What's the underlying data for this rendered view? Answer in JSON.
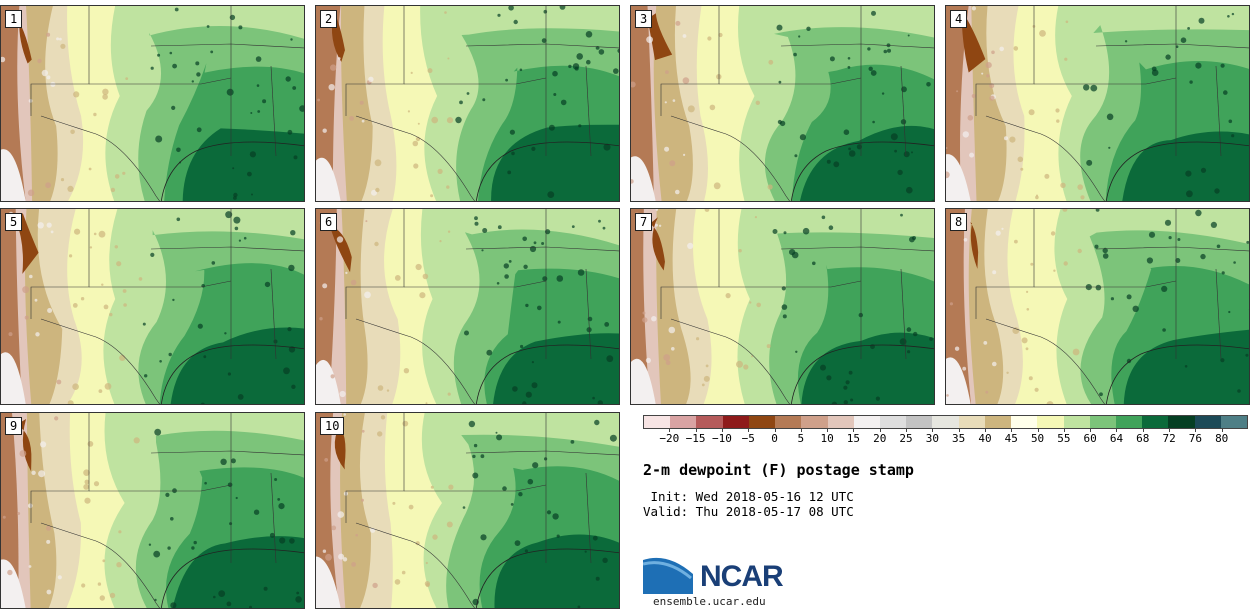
{
  "panels": [
    {
      "label": "1",
      "variant": 1
    },
    {
      "label": "2",
      "variant": 2
    },
    {
      "label": "3",
      "variant": 3
    },
    {
      "label": "4",
      "variant": 4
    },
    {
      "label": "5",
      "variant": 5
    },
    {
      "label": "6",
      "variant": 6
    },
    {
      "label": "7",
      "variant": 7
    },
    {
      "label": "8",
      "variant": 8
    },
    {
      "label": "9",
      "variant": 9
    },
    {
      "label": "10",
      "variant": 10
    }
  ],
  "colorbar": {
    "colors": [
      "#f7e4e4",
      "#d9a3a3",
      "#b55a5a",
      "#8e1a1a",
      "#8f4612",
      "#b47a55",
      "#cfa08a",
      "#e2c6bb",
      "#f3f0f0",
      "#dedede",
      "#c3c3c3",
      "#e6e6df",
      "#e8dcb9",
      "#cdb57e",
      "#ffffea",
      "#f5f8b6",
      "#bfe3a0",
      "#7cc47a",
      "#40a35a",
      "#0b6a3a",
      "#053f23",
      "#1c4a57",
      "#4e7f86"
    ],
    "ticks": [
      "−20",
      "−15",
      "−10",
      "−5",
      "0",
      "5",
      "10",
      "15",
      "20",
      "25",
      "30",
      "35",
      "40",
      "45",
      "50",
      "55",
      "60",
      "64",
      "68",
      "72",
      "76",
      "80"
    ]
  },
  "title": "2-m dewpoint (F) postage stamp",
  "init_text": " Init: Wed 2018-05-16 12 UTC",
  "valid_text": "Valid: Thu 2018-05-17 08 UTC",
  "logo": {
    "text": "NCAR",
    "url": "ensemble.ucar.edu",
    "color": "#1a3f77",
    "swoosh_color": "#1e6fb5"
  }
}
